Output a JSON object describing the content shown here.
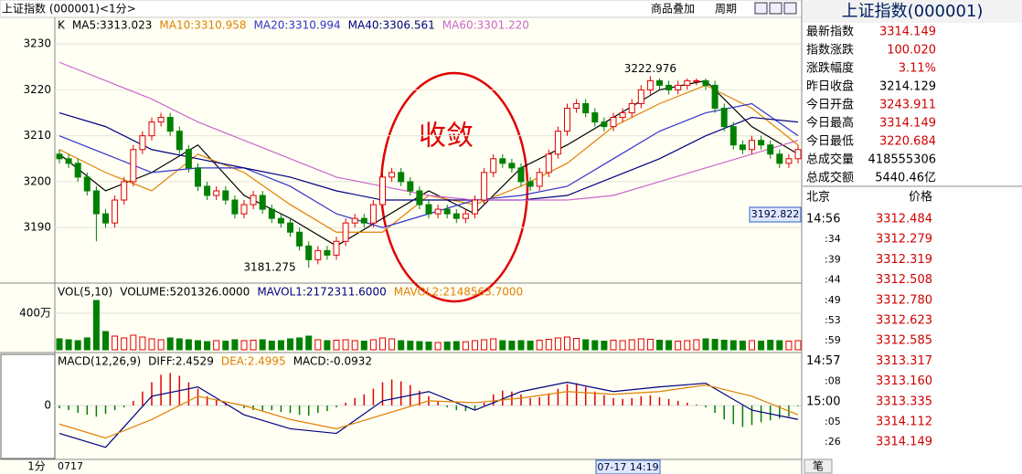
{
  "header": {
    "title": "上证指数 (000001)<1分>",
    "buttons": [
      "商品叠加",
      "周期"
    ]
  },
  "chart_data": [
    {
      "type": "candlestick",
      "legend_label": "K",
      "x": [
        0,
        1,
        2,
        3,
        4,
        5,
        6,
        7,
        8,
        9,
        10,
        11,
        12,
        13,
        14,
        15,
        16,
        17,
        18,
        19,
        20,
        21,
        22,
        23,
        24,
        25,
        26,
        27,
        28,
        29,
        30,
        31,
        32,
        33,
        34,
        35,
        36,
        37,
        38,
        39,
        40,
        41,
        42,
        43,
        44,
        45,
        46,
        47,
        48,
        49,
        50,
        51,
        52,
        53,
        54,
        55,
        56,
        57,
        58,
        59,
        60,
        61,
        62,
        63,
        64,
        65,
        66,
        67,
        68,
        69,
        70,
        71,
        72,
        73,
        74,
        75,
        76,
        77,
        78,
        79,
        80
      ],
      "open": [
        3206,
        3205,
        3204,
        3201,
        3198,
        3193,
        3191,
        3196,
        3200,
        3207,
        3210,
        3213,
        3214,
        3211,
        3207,
        3203,
        3199,
        3197,
        3198,
        3196,
        3193,
        3195,
        3197,
        3194,
        3192,
        3191,
        3189,
        3186,
        3183,
        3185,
        3184,
        3187,
        3191,
        3192,
        3191,
        3195,
        3201,
        3202,
        3200,
        3198,
        3195,
        3193,
        3194,
        3193,
        3192,
        3193,
        3196,
        3202,
        3205,
        3204,
        3203,
        3200,
        3199,
        3202,
        3206,
        3211,
        3216,
        3217,
        3215,
        3213,
        3212,
        3214,
        3215,
        3217,
        3220,
        3222,
        3221,
        3220,
        3221,
        3222,
        3222,
        3221,
        3216,
        3212,
        3208,
        3207,
        3209,
        3208,
        3206,
        3204,
        3205
      ],
      "high": [
        3207,
        3206,
        3205,
        3202,
        3199,
        3194,
        3197,
        3201,
        3208,
        3211,
        3214,
        3215,
        3215,
        3212,
        3208,
        3204,
        3200,
        3199,
        3199,
        3197,
        3196,
        3198,
        3198,
        3195,
        3193,
        3192,
        3190,
        3187,
        3186,
        3186,
        3188,
        3192,
        3193,
        3193,
        3196,
        3203,
        3203,
        3203,
        3201,
        3199,
        3196,
        3195,
        3195,
        3194,
        3194,
        3197,
        3203,
        3206,
        3206,
        3205,
        3204,
        3201,
        3203,
        3207,
        3212,
        3217,
        3218,
        3218,
        3216,
        3214,
        3215,
        3216,
        3218,
        3221,
        3222.976,
        3222.5,
        3222,
        3222,
        3222.5,
        3222.5,
        3222.5,
        3222,
        3217,
        3213,
        3209,
        3210,
        3210,
        3209,
        3207,
        3206,
        3208
      ],
      "low": [
        3204,
        3203,
        3200,
        3197,
        3187,
        3190,
        3190,
        3195,
        3199,
        3206,
        3209,
        3212,
        3210,
        3206,
        3202,
        3198,
        3196,
        3196,
        3195,
        3192,
        3192,
        3194,
        3193,
        3191,
        3190,
        3188,
        3185,
        3181.275,
        3182,
        3183,
        3183,
        3186,
        3190,
        3190,
        3190,
        3194,
        3200,
        3199,
        3197,
        3194,
        3192,
        3192,
        3192,
        3191,
        3191,
        3192,
        3195,
        3201,
        3203,
        3202,
        3199,
        3198,
        3198,
        3201,
        3205,
        3210,
        3215,
        3214,
        3212,
        3211,
        3211,
        3213,
        3214,
        3216,
        3219,
        3220,
        3219,
        3219,
        3220,
        3221,
        3220,
        3215,
        3211,
        3207,
        3206,
        3206,
        3207,
        3205,
        3203,
        3203,
        3204
      ],
      "close": [
        3205,
        3204,
        3201,
        3198,
        3193,
        3191,
        3196,
        3200,
        3207,
        3210,
        3213,
        3214,
        3211,
        3207,
        3203,
        3199,
        3197,
        3198,
        3196,
        3193,
        3195,
        3197,
        3194,
        3192,
        3191,
        3189,
        3186,
        3183,
        3185,
        3184,
        3187,
        3191,
        3192,
        3191,
        3195,
        3201,
        3202,
        3200,
        3198,
        3195,
        3193,
        3194,
        3193,
        3192,
        3193,
        3196,
        3202,
        3205,
        3204,
        3203,
        3200,
        3199,
        3202,
        3206,
        3211,
        3216,
        3217,
        3215,
        3213,
        3212,
        3214,
        3215,
        3217,
        3220,
        3222,
        3221,
        3220,
        3221,
        3222,
        3222,
        3221,
        3216,
        3212,
        3208,
        3207,
        3209,
        3208,
        3206,
        3204,
        3205,
        3207
      ],
      "up_color": "#e00000",
      "down_color": "#008000",
      "series": [
        {
          "name": "MA5:3313.023",
          "color": "#000000",
          "x": [
            0,
            5,
            10,
            15,
            20,
            25,
            30,
            35,
            40,
            45,
            50,
            55,
            60,
            65,
            70,
            75,
            80
          ],
          "values": [
            3206,
            3198,
            3202,
            3208,
            3197,
            3192,
            3186,
            3192,
            3198,
            3193,
            3203,
            3208,
            3214,
            3220,
            3222,
            3212,
            3206
          ]
        },
        {
          "name": "MA10:3310.958",
          "color": "#e08000",
          "x": [
            0,
            5,
            10,
            15,
            20,
            25,
            30,
            35,
            40,
            45,
            50,
            55,
            60,
            65,
            70,
            75,
            80
          ],
          "values": [
            3207,
            3202,
            3198,
            3206,
            3202,
            3195,
            3189,
            3189,
            3197,
            3195,
            3199,
            3204,
            3212,
            3217,
            3221,
            3216,
            3208
          ]
        },
        {
          "name": "MA20:3310.994",
          "color": "#3333cc",
          "x": [
            0,
            5,
            10,
            15,
            20,
            25,
            30,
            35,
            40,
            45,
            50,
            55,
            60,
            65,
            70,
            75,
            80
          ],
          "values": [
            3210,
            3206,
            3202,
            3203,
            3203,
            3199,
            3193,
            3190,
            3193,
            3196,
            3197,
            3199,
            3205,
            3211,
            3215,
            3217,
            3210
          ]
        },
        {
          "name": "MA40:3306.561",
          "color": "#000080",
          "x": [
            0,
            5,
            10,
            15,
            20,
            25,
            30,
            35,
            40,
            45,
            50,
            55,
            60,
            65,
            70,
            75,
            80
          ],
          "values": [
            3215,
            3212,
            3207,
            3205,
            3203,
            3201,
            3198,
            3196,
            3196,
            3196,
            3196,
            3197,
            3201,
            3205,
            3210,
            3214,
            3213
          ]
        },
        {
          "name": "MA60:3301.220",
          "color": "#cc66cc",
          "x": [
            0,
            5,
            10,
            15,
            20,
            25,
            30,
            35,
            40,
            45,
            50,
            55,
            60,
            65,
            70,
            75,
            80
          ],
          "values": [
            3226,
            3222,
            3218,
            3213,
            3209,
            3205,
            3201,
            3199,
            3197,
            3196,
            3196,
            3196,
            3197,
            3200,
            3203,
            3206,
            3209
          ]
        }
      ],
      "ylim": [
        3178.3,
        3235.6
      ],
      "yticks": [
        3190,
        3200,
        3210,
        3220,
        3230
      ],
      "grid": true,
      "annotation": "收敛",
      "cursor_price": 3192.822
    },
    {
      "type": "volume",
      "legend": [
        {
          "text": "VOL(5,10)",
          "color": "#000000"
        },
        {
          "text": "VOLUME:5201326.0000",
          "color": "#000000"
        },
        {
          "text": "MAVOL1:2172311.6000",
          "color": "#000080"
        },
        {
          "text": "MAVOL2:2148563.7000",
          "color": "#e08000"
        }
      ],
      "values": [
        120,
        110,
        100,
        130,
        540,
        200,
        150,
        130,
        160,
        140,
        120,
        110,
        130,
        120,
        110,
        100,
        90,
        100,
        95,
        110,
        100,
        105,
        110,
        95,
        100,
        120,
        130,
        150,
        110,
        100,
        105,
        110,
        100,
        95,
        110,
        130,
        120,
        100,
        95,
        90,
        85,
        80,
        85,
        90,
        88,
        100,
        110,
        120,
        100,
        95,
        100,
        95,
        105,
        115,
        130,
        140,
        125,
        110,
        100,
        95,
        105,
        100,
        110,
        120,
        115,
        105,
        100,
        95,
        100,
        110,
        120,
        115,
        105,
        100,
        95,
        100,
        95,
        105,
        100,
        95,
        100
      ],
      "ylim": [
        0,
        710
      ],
      "yticks": [
        {
          "value": 400,
          "label": "400万"
        }
      ]
    },
    {
      "type": "macd",
      "legend": [
        {
          "text": "MACD(12,26,9)",
          "color": "#000000"
        },
        {
          "text": "DIFF:2.4529",
          "color": "#000000"
        },
        {
          "text": "DEA:2.4995",
          "color": "#e08000"
        },
        {
          "text": "MACD:-0.0932",
          "color": "#000000"
        }
      ],
      "values": [
        -0.3,
        -0.5,
        -0.8,
        -1.0,
        -1.2,
        -0.9,
        -0.5,
        -0.2,
        0.5,
        1.5,
        2.5,
        3.3,
        3.5,
        3.2,
        2.5,
        1.8,
        1.0,
        0.6,
        0.3,
        0.0,
        -0.3,
        -0.5,
        -0.6,
        -0.5,
        -0.7,
        -0.8,
        -1.0,
        -1.1,
        -0.8,
        -0.6,
        -0.2,
        0.3,
        0.8,
        1.2,
        1.8,
        2.5,
        2.8,
        2.6,
        2.2,
        1.6,
        1.0,
        0.4,
        -0.2,
        -0.5,
        -0.6,
        -0.4,
        0.3,
        1.2,
        1.6,
        1.5,
        1.2,
        0.8,
        0.9,
        1.3,
        1.8,
        2.3,
        2.4,
        2.0,
        1.5,
        1.1,
        0.8,
        0.7,
        0.8,
        1.0,
        1.1,
        0.9,
        0.7,
        0.5,
        0.3,
        0.1,
        -0.2,
        -0.8,
        -1.5,
        -2.0,
        -2.3,
        -2.1,
        -1.8,
        -1.6,
        -1.4,
        -1.2,
        -0.1
      ],
      "series": [
        {
          "name": "DIFF",
          "color": "#000080",
          "x": [
            0,
            5,
            10,
            15,
            20,
            25,
            30,
            35,
            40,
            45,
            50,
            55,
            60,
            65,
            70,
            75,
            80
          ],
          "values": [
            -3.0,
            -4.5,
            1.0,
            2.0,
            -1.0,
            -2.5,
            -3.0,
            0.5,
            1.5,
            -0.5,
            1.5,
            2.5,
            1.5,
            2.0,
            2.4,
            -0.5,
            -1.5
          ]
        },
        {
          "name": "DEA",
          "color": "#e08000",
          "x": [
            0,
            5,
            10,
            15,
            20,
            25,
            30,
            35,
            40,
            45,
            50,
            55,
            60,
            65,
            70,
            75,
            80
          ],
          "values": [
            -2.0,
            -3.5,
            -1.5,
            1.0,
            0.0,
            -1.5,
            -2.5,
            -1.0,
            0.5,
            0.3,
            0.8,
            1.5,
            1.2,
            1.5,
            2.2,
            1.0,
            -1.0
          ]
        }
      ],
      "ylim": [
        -5.5,
        5.5
      ],
      "yticks": [
        0
      ]
    }
  ],
  "footer": {
    "period": "1分",
    "start": "0717",
    "cursor_time": "07-17 14:19"
  },
  "quote_panel": {
    "title": "上证指数(000001)",
    "rows": [
      [
        "最新指数",
        3314.149
      ],
      [
        "指数涨跌",
        "100.020"
      ],
      [
        "涨跌幅度",
        "3.11%"
      ],
      [
        "昨日收盘",
        3214.129
      ],
      [
        "今日开盘",
        3243.911
      ],
      [
        "今日最高",
        3314.149
      ],
      [
        "今日最低",
        3220.684
      ],
      [
        "总成交量",
        418555306
      ],
      [
        "总成交额",
        "5440.46亿"
      ]
    ],
    "ticks_header": [
      "北京",
      "价格"
    ],
    "ticks": [
      [
        "14:56",
        3312.484
      ],
      [
        ":34",
        3312.279
      ],
      [
        ":39",
        3312.319
      ],
      [
        ":44",
        3312.508
      ],
      [
        ":49",
        "3312.780"
      ],
      [
        ":53",
        3312.623
      ],
      [
        ":59",
        3312.585
      ],
      [
        "14:57",
        3313.317
      ],
      [
        ":08",
        "3313.160"
      ],
      [
        "15:00",
        3313.335
      ],
      [
        ":05",
        3314.112
      ],
      [
        ":26",
        3314.149
      ]
    ],
    "tab": "笔"
  }
}
